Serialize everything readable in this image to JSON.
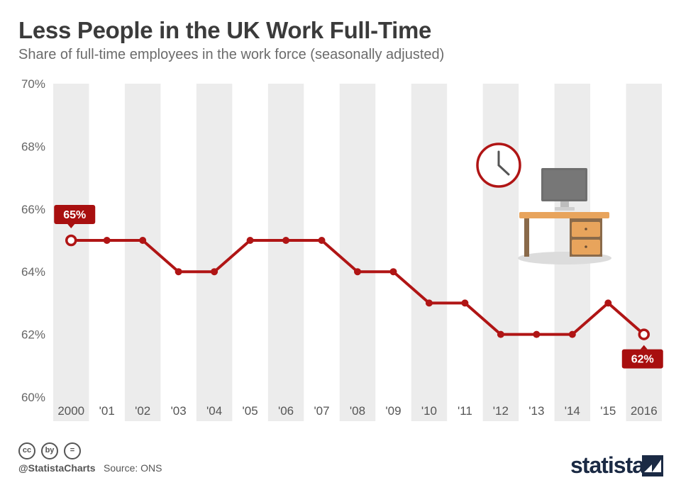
{
  "header": {
    "title": "Less People in the UK Work Full-Time",
    "subtitle": "Share of full-time employees in the work force (seasonally adjusted)"
  },
  "chart_data": {
    "type": "line",
    "categories": [
      "2000",
      "'01",
      "'02",
      "'03",
      "'04",
      "'05",
      "'06",
      "'07",
      "'08",
      "'09",
      "'10",
      "'11",
      "'12",
      "'13",
      "'14",
      "'15",
      "2016"
    ],
    "series": [
      {
        "values": [
          65,
          65,
          65,
          64,
          64,
          65,
          65,
          65,
          64,
          64,
          63,
          63,
          62,
          62,
          62,
          63,
          62
        ]
      }
    ],
    "y_ticks": [
      "70%",
      "68%",
      "66%",
      "64%",
      "62%",
      "60%"
    ],
    "ylim": [
      60,
      70
    ],
    "annotations": [
      {
        "index": 0,
        "label": "65%"
      },
      {
        "index": 16,
        "label": "62%"
      }
    ],
    "colors": {
      "line": "#b01515",
      "band": "#ececec"
    }
  },
  "footer": {
    "handle": "@StatistaCharts",
    "source": "Source: ONS",
    "brand": "statista",
    "license_icons": [
      "cc",
      "by",
      "="
    ]
  }
}
